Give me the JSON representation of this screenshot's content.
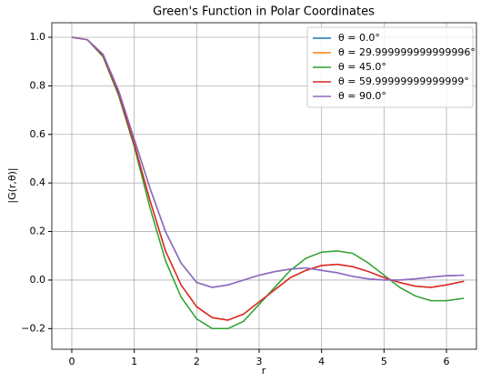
{
  "chart_data": {
    "type": "line",
    "title": "Green's Function in Polar Coordinates",
    "xlabel": "r",
    "ylabel": "|G(r,θ)|",
    "x": [
      0,
      0.25,
      0.5,
      0.75,
      1.0,
      1.25,
      1.5,
      1.75,
      2.0,
      2.25,
      2.5,
      2.75,
      3.0,
      3.25,
      3.5,
      3.75,
      4.0,
      4.25,
      4.5,
      4.75,
      5.0,
      5.25,
      5.5,
      5.75,
      6.0,
      6.28
    ],
    "series": [
      {
        "name": "θ = 0.0°",
        "color": "#1f77b4",
        "values": [
          1.0,
          0.99,
          0.93,
          0.78,
          0.58,
          0.38,
          0.2,
          0.07,
          -0.01,
          -0.03,
          -0.02,
          0.0,
          0.02,
          0.035,
          0.045,
          0.05,
          0.04,
          0.03,
          0.015,
          0.005,
          0.0,
          0.0,
          0.005,
          0.012,
          0.018,
          0.02
        ]
      },
      {
        "name": "θ = 29.999999999999996°",
        "color": "#ff7f0e",
        "values": [
          1.0,
          0.99,
          0.925,
          0.77,
          0.56,
          0.33,
          0.12,
          -0.02,
          -0.11,
          -0.155,
          -0.165,
          -0.14,
          -0.09,
          -0.04,
          0.01,
          0.04,
          0.06,
          0.065,
          0.055,
          0.035,
          0.01,
          -0.01,
          -0.025,
          -0.03,
          -0.02,
          -0.005
        ]
      },
      {
        "name": "θ = 45.0°",
        "color": "#2ca02c",
        "values": [
          1.0,
          0.99,
          0.92,
          0.76,
          0.55,
          0.3,
          0.08,
          -0.07,
          -0.16,
          -0.2,
          -0.2,
          -0.17,
          -0.1,
          -0.03,
          0.04,
          0.09,
          0.115,
          0.12,
          0.11,
          0.07,
          0.02,
          -0.03,
          -0.065,
          -0.085,
          -0.085,
          -0.075
        ]
      },
      {
        "name": "θ = 59.99999999999999°",
        "color": "#d62728",
        "values": [
          1.0,
          0.99,
          0.925,
          0.77,
          0.56,
          0.33,
          0.12,
          -0.02,
          -0.11,
          -0.155,
          -0.165,
          -0.14,
          -0.09,
          -0.04,
          0.01,
          0.04,
          0.06,
          0.065,
          0.055,
          0.035,
          0.01,
          -0.01,
          -0.025,
          -0.03,
          -0.02,
          -0.005
        ]
      },
      {
        "name": "θ = 90.0°",
        "color": "#9467bd",
        "values": [
          1.0,
          0.99,
          0.93,
          0.78,
          0.58,
          0.38,
          0.2,
          0.07,
          -0.01,
          -0.03,
          -0.02,
          0.0,
          0.02,
          0.035,
          0.045,
          0.05,
          0.04,
          0.03,
          0.015,
          0.005,
          0.0,
          0.0,
          0.005,
          0.012,
          0.018,
          0.02
        ]
      }
    ],
    "xlim": [
      -0.32,
      6.48
    ],
    "ylim": [
      -0.285,
      1.06
    ],
    "xticks": [
      0,
      1,
      2,
      3,
      4,
      5,
      6
    ],
    "yticks": [
      {
        "value": -0.2,
        "label": "−0.2"
      },
      {
        "value": 0,
        "label": "0.0"
      },
      0.2,
      0.4,
      0.6,
      0.8,
      {
        "value": 1,
        "label": "1.0"
      }
    ],
    "grid": true,
    "legend": "upper right"
  }
}
